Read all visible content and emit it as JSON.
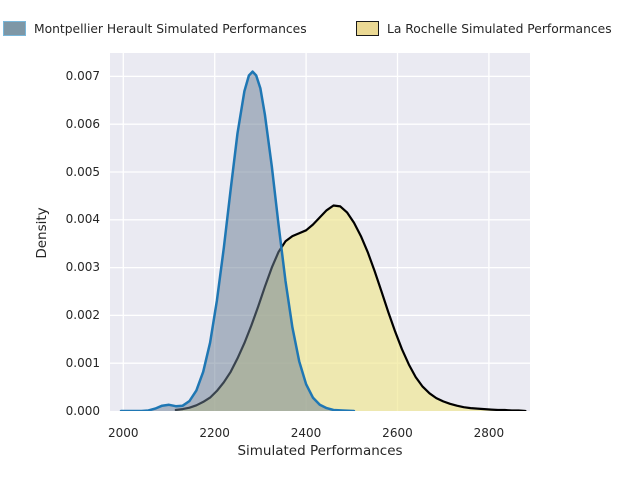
{
  "legend": {
    "items": [
      {
        "label": "Montpellier Herault Simulated Performances",
        "swatch_fill": "#7e97a6",
        "swatch_border": "#79b7da"
      },
      {
        "label": "La Rochelle Simulated Performances",
        "swatch_fill": "#ebd994",
        "swatch_border": "#1a1a1a"
      }
    ]
  },
  "chart_data": {
    "type": "area",
    "subtype": "kde-density",
    "title": "",
    "xlabel": "Simulated Performances",
    "ylabel": "Density",
    "xlim": [
      1971,
      2890
    ],
    "ylim": [
      0,
      0.00749
    ],
    "x_ticks": [
      2000,
      2200,
      2400,
      2600,
      2800
    ],
    "y_tick_values": [
      0,
      0.001,
      0.002,
      0.003,
      0.004,
      0.005,
      0.006,
      0.007
    ],
    "grid": true,
    "grid_color": "#ffffff",
    "plot_background": "#eaeaf2",
    "legend_position": "above-axes",
    "series": [
      {
        "name": "Montpellier Herault Simulated Performances",
        "line_color": "#1f77b4",
        "line_width": 2.5,
        "fill_color": "rgba(110,128,150,0.52)",
        "peak": {
          "x": 2283,
          "y": 0.0071
        },
        "x": [
          1995,
          2010,
          2025,
          2040,
          2055,
          2070,
          2085,
          2100,
          2115,
          2130,
          2145,
          2160,
          2175,
          2190,
          2205,
          2220,
          2235,
          2250,
          2265,
          2275,
          2283,
          2291,
          2300,
          2310,
          2325,
          2340,
          2355,
          2370,
          2385,
          2400,
          2415,
          2430,
          2445,
          2460,
          2480,
          2505
        ],
        "y": [
          0,
          0,
          1e-06,
          1e-06,
          1e-05,
          5e-05,
          0.00011,
          0.00013,
          0.0001,
          0.00011,
          0.00021,
          0.00043,
          0.00082,
          0.00143,
          0.00231,
          0.00341,
          0.00464,
          0.00581,
          0.00669,
          0.00702,
          0.0071,
          0.00702,
          0.00675,
          0.0062,
          0.00512,
          0.00389,
          0.00272,
          0.00175,
          0.00104,
          0.00056,
          0.00028,
          0.00013,
          6e-05,
          2e-05,
          1e-05,
          0
        ]
      },
      {
        "name": "La Rochelle Simulated Performances",
        "line_color": "#000000",
        "line_width": 2.2,
        "fill_color": "rgba(240,230,140,0.65)",
        "peak": {
          "x": 2460,
          "y": 0.0043
        },
        "x": [
          2115,
          2130,
          2145,
          2160,
          2175,
          2190,
          2205,
          2220,
          2235,
          2250,
          2265,
          2280,
          2295,
          2310,
          2325,
          2340,
          2355,
          2370,
          2385,
          2400,
          2415,
          2430,
          2445,
          2460,
          2475,
          2490,
          2505,
          2520,
          2535,
          2550,
          2565,
          2580,
          2595,
          2610,
          2625,
          2640,
          2655,
          2670,
          2685,
          2700,
          2715,
          2730,
          2745,
          2760,
          2775,
          2790,
          2805,
          2820,
          2835,
          2850,
          2865,
          2880
        ],
        "y": [
          2e-05,
          4e-05,
          7e-05,
          0.00012,
          0.00019,
          0.00028,
          0.00042,
          0.0006,
          0.00082,
          0.0011,
          0.00142,
          0.00178,
          0.00218,
          0.0026,
          0.003,
          0.00333,
          0.00355,
          0.00366,
          0.00372,
          0.00378,
          0.0039,
          0.00405,
          0.0042,
          0.0043,
          0.00428,
          0.00415,
          0.00394,
          0.00366,
          0.00332,
          0.00293,
          0.0025,
          0.00207,
          0.00166,
          0.00129,
          0.00097,
          0.00071,
          0.00051,
          0.00037,
          0.00027,
          0.0002,
          0.00015,
          0.00011,
          8e-05,
          6e-05,
          5e-05,
          4e-05,
          3e-05,
          2e-05,
          2e-05,
          1e-05,
          1e-05,
          0
        ]
      }
    ]
  }
}
